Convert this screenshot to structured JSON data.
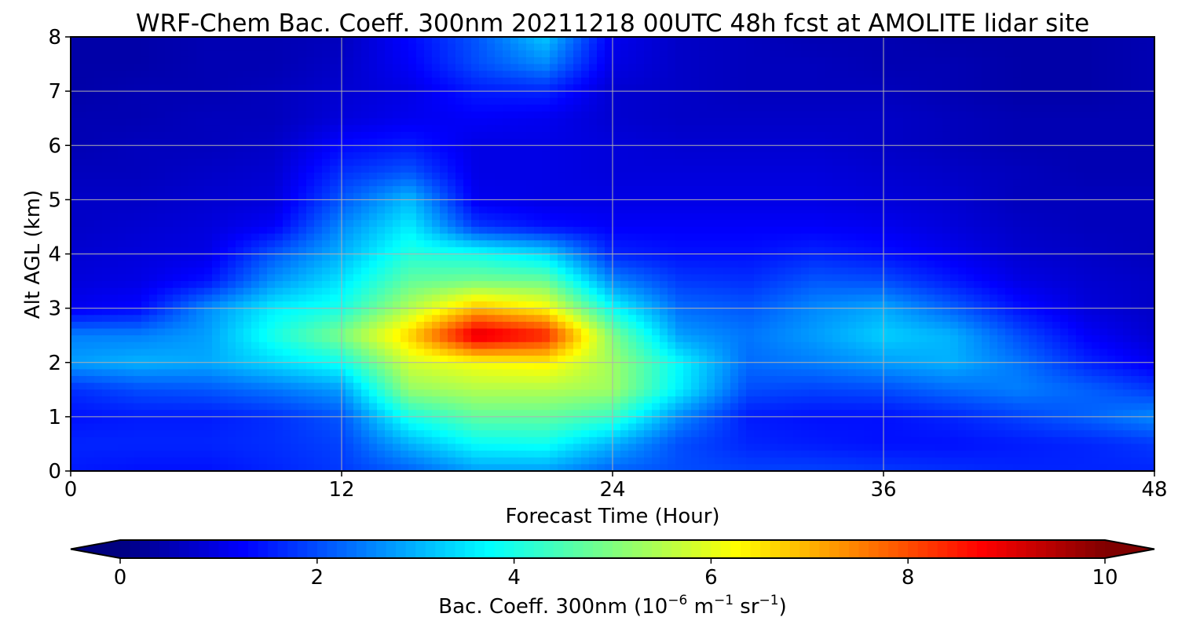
{
  "chart_data": {
    "type": "heatmap",
    "title": "WRF-Chem Bac. Coeff. 300nm  20211218 00UTC 48h fcst at AMOLITE lidar site",
    "xlabel": "Forecast Time (Hour)",
    "ylabel": "Alt AGL (km)",
    "xlim": [
      0,
      48
    ],
    "ylim": [
      0,
      8
    ],
    "x_ticks": [
      "0",
      "12",
      "24",
      "36",
      "48"
    ],
    "y_ticks": [
      "0",
      "1",
      "2",
      "3",
      "4",
      "5",
      "6",
      "7",
      "8"
    ],
    "grid": true,
    "colormap": "jet",
    "colorbar": {
      "orientation": "horizontal",
      "position": "bottom",
      "extend": "both",
      "range": [
        0,
        10
      ],
      "ticks": [
        "0",
        "2",
        "4",
        "6",
        "8",
        "10"
      ],
      "label_main": "Bac. Coeff. 300nm  (10",
      "label_exp1": "−6",
      "label_mid1": " m",
      "label_exp2": "−1",
      "label_mid2": " sr",
      "label_exp3": "−1",
      "label_end": ")"
    },
    "x": [
      0,
      3,
      6,
      9,
      12,
      15,
      18,
      21,
      24,
      27,
      30,
      33,
      36,
      39,
      42,
      45,
      48
    ],
    "y": [
      0,
      0.5,
      1,
      1.5,
      2,
      2.5,
      3,
      3.5,
      4,
      4.5,
      5,
      5.5,
      6,
      6.5,
      7,
      7.5,
      8
    ],
    "z": [
      [
        1.5,
        1.4,
        1.4,
        1.6,
        1.8,
        2.2,
        2.8,
        2.8,
        2.2,
        2.0,
        1.9,
        1.9,
        1.8,
        1.7,
        1.6,
        1.6,
        1.6
      ],
      [
        1.6,
        1.6,
        1.6,
        1.7,
        1.9,
        3.0,
        3.8,
        3.9,
        3.0,
        2.0,
        1.6,
        1.5,
        1.4,
        1.4,
        1.5,
        1.6,
        1.8
      ],
      [
        1.4,
        1.5,
        1.5,
        1.7,
        2.1,
        4.0,
        4.7,
        4.7,
        4.3,
        2.6,
        1.5,
        1.4,
        1.4,
        1.6,
        1.9,
        2.2,
        2.6
      ],
      [
        1.7,
        2.0,
        2.1,
        2.4,
        2.8,
        5.2,
        5.5,
        5.5,
        5.3,
        3.6,
        2.0,
        1.9,
        2.0,
        2.3,
        2.5,
        2.2,
        1.8
      ],
      [
        2.8,
        3.0,
        2.9,
        3.4,
        3.9,
        5.8,
        6.2,
        6.4,
        5.3,
        3.7,
        2.3,
        2.5,
        2.8,
        3.0,
        2.4,
        1.6,
        1.1
      ],
      [
        2.5,
        2.5,
        2.8,
        4.0,
        5.0,
        6.7,
        9.2,
        8.5,
        5.0,
        2.8,
        2.4,
        2.8,
        3.3,
        3.0,
        2.0,
        1.2,
        0.8
      ],
      [
        1.1,
        1.3,
        2.6,
        3.6,
        4.0,
        5.5,
        6.9,
        6.3,
        3.8,
        2.3,
        2.1,
        2.6,
        2.9,
        2.2,
        1.4,
        0.9,
        0.7
      ],
      [
        0.9,
        1.0,
        1.4,
        2.7,
        3.5,
        4.7,
        4.9,
        4.8,
        2.6,
        1.8,
        1.7,
        2.1,
        2.0,
        1.5,
        1.0,
        0.8,
        0.7
      ],
      [
        0.8,
        0.9,
        1.0,
        2.1,
        3.0,
        4.1,
        3.9,
        3.4,
        1.6,
        1.4,
        1.4,
        1.6,
        1.4,
        1.1,
        0.8,
        0.7,
        0.6
      ],
      [
        0.7,
        0.8,
        0.9,
        1.2,
        2.6,
        3.6,
        1.8,
        1.4,
        1.2,
        1.2,
        1.2,
        1.2,
        1.1,
        0.9,
        0.7,
        0.6,
        0.6
      ],
      [
        0.7,
        0.7,
        0.8,
        0.9,
        2.1,
        3.1,
        1.1,
        1.0,
        1.0,
        1.0,
        1.0,
        1.0,
        0.9,
        0.8,
        0.6,
        0.6,
        0.6
      ],
      [
        0.6,
        0.6,
        0.7,
        0.8,
        1.7,
        2.1,
        1.0,
        1.0,
        0.9,
        0.9,
        0.9,
        0.9,
        0.8,
        0.7,
        0.6,
        0.5,
        0.5
      ],
      [
        0.5,
        0.6,
        0.6,
        0.7,
        1.3,
        1.5,
        1.0,
        1.0,
        0.9,
        0.8,
        0.8,
        0.8,
        0.7,
        0.6,
        0.5,
        0.5,
        0.5
      ],
      [
        0.5,
        0.5,
        0.6,
        0.6,
        0.9,
        1.1,
        1.2,
        1.1,
        0.8,
        0.7,
        0.7,
        0.7,
        0.7,
        0.6,
        0.5,
        0.5,
        0.5
      ],
      [
        0.4,
        0.5,
        0.5,
        0.6,
        0.8,
        1.0,
        1.5,
        1.6,
        0.8,
        0.7,
        0.6,
        0.6,
        0.6,
        0.5,
        0.4,
        0.4,
        0.5
      ],
      [
        0.4,
        0.4,
        0.5,
        0.5,
        0.7,
        1.2,
        2.0,
        2.6,
        1.0,
        0.7,
        0.6,
        0.6,
        0.5,
        0.5,
        0.4,
        0.4,
        0.5
      ],
      [
        0.4,
        0.4,
        0.5,
        0.5,
        0.6,
        1.3,
        2.1,
        3.2,
        1.1,
        0.7,
        0.6,
        0.5,
        0.5,
        0.4,
        0.4,
        0.4,
        0.5
      ]
    ]
  }
}
